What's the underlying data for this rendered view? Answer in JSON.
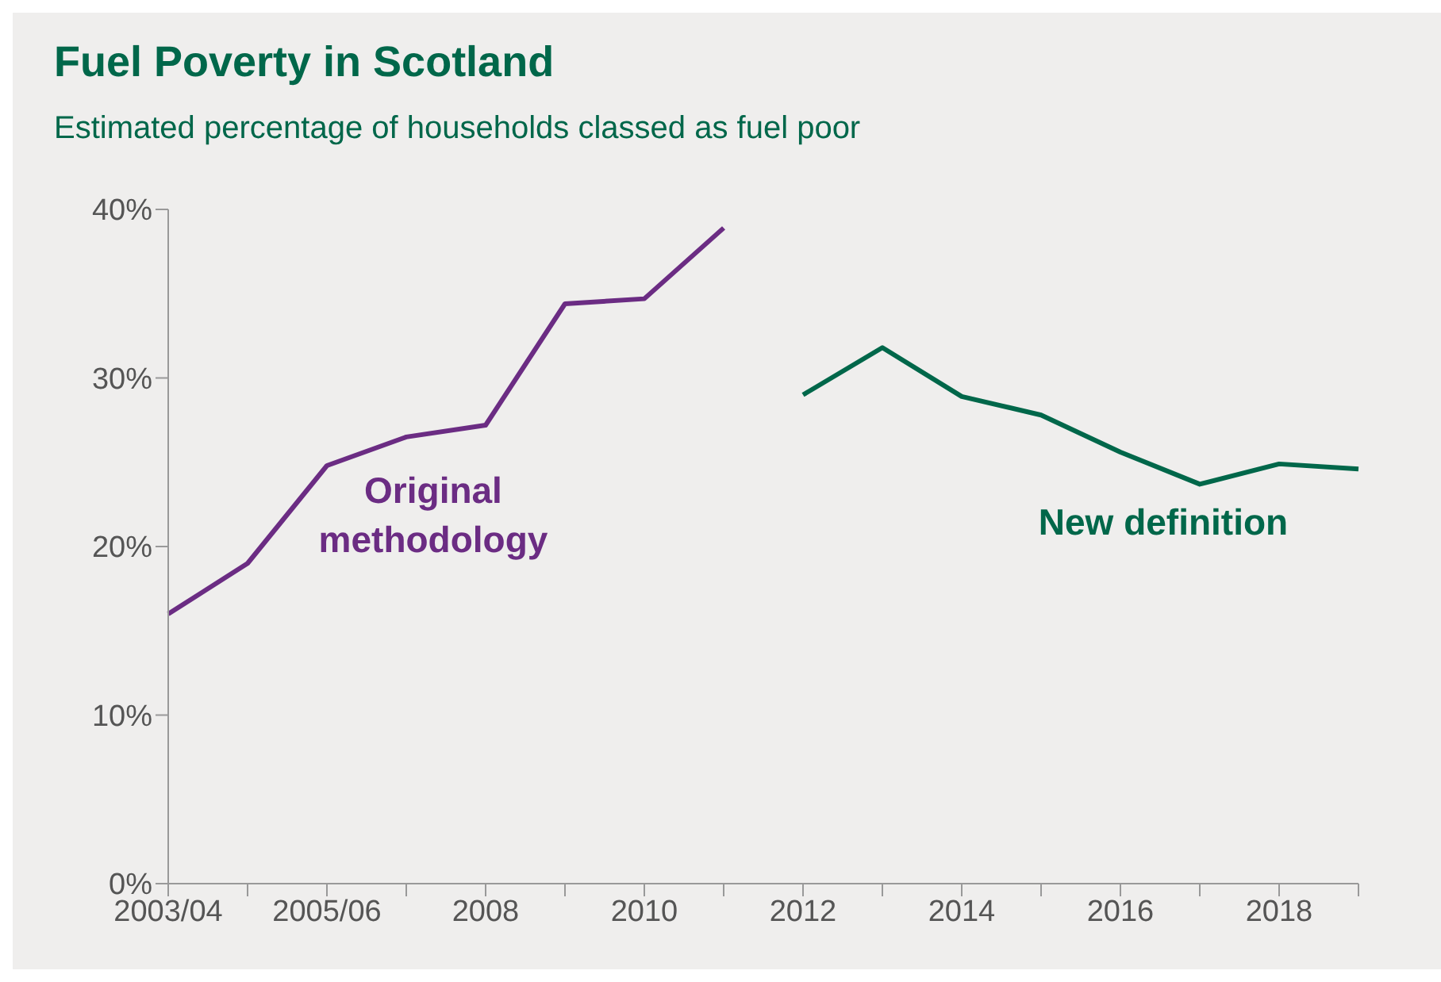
{
  "chart_data": {
    "type": "line",
    "title": "Fuel Poverty in Scotland",
    "subtitle": "Estimated percentage of households classed as fuel poor",
    "categories": [
      "2003/04",
      null,
      "2005/06",
      null,
      "2008",
      null,
      "2010",
      null,
      "2012",
      null,
      "2014",
      null,
      "2016",
      null,
      "2018",
      null
    ],
    "series": [
      {
        "name": "Original methodology",
        "color": "#6b2c83",
        "values": [
          16,
          19,
          24.8,
          26.5,
          27.2,
          34.4,
          34.7,
          38.9,
          null,
          null,
          null,
          null,
          null,
          null,
          null,
          null
        ]
      },
      {
        "name": "New definition",
        "color": "#00674a",
        "values": [
          null,
          null,
          null,
          null,
          null,
          null,
          null,
          null,
          29,
          31.8,
          28.9,
          27.8,
          25.6,
          23.7,
          24.9,
          24.6
        ]
      }
    ],
    "ylim": [
      0,
      40
    ],
    "yticks": [
      {
        "value": 0,
        "label": "0%"
      },
      {
        "value": 10,
        "label": "10%"
      },
      {
        "value": 20,
        "label": "20%"
      },
      {
        "value": 30,
        "label": "30%"
      },
      {
        "value": 40,
        "label": "40%"
      }
    ],
    "grid": false,
    "marker": "none",
    "line_style": "solid"
  }
}
